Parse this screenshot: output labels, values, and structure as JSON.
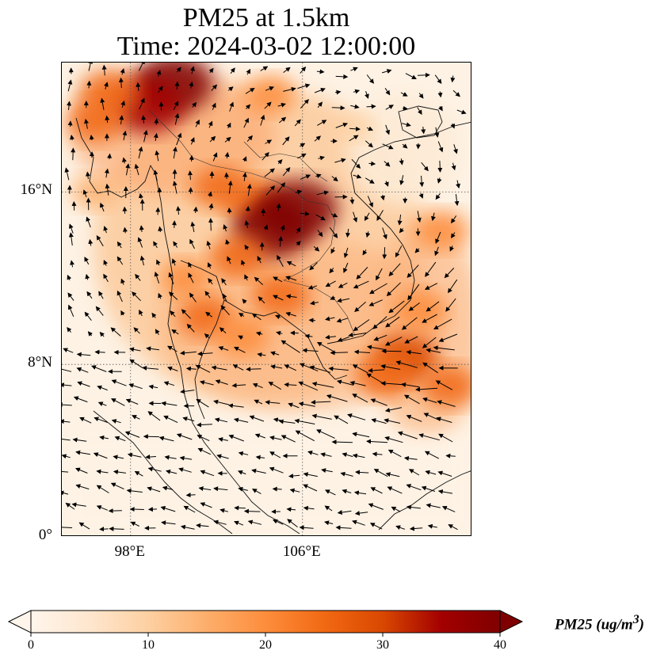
{
  "title_line1": "PM25 at 1.5km",
  "title_line2": "Time: 2024-03-02 12:00:00",
  "map": {
    "extent": {
      "lon_min": 94.8,
      "lon_max": 113.9,
      "lat_min": 0,
      "lat_max": 22
    },
    "lat_ticks": [
      {
        "value": 16,
        "label": "16°N"
      },
      {
        "value": 8,
        "label": "8°N"
      },
      {
        "value": 0,
        "label": "0°"
      }
    ],
    "lon_ticks": [
      {
        "value": 98,
        "label": "98°E"
      },
      {
        "value": 106,
        "label": "106°E"
      }
    ],
    "hotspots": [
      {
        "lon": 100.0,
        "lat": 21.0,
        "pm25": 40
      },
      {
        "lon": 98.8,
        "lat": 20.0,
        "pm25": 36
      },
      {
        "lon": 97.0,
        "lat": 20.6,
        "pm25": 27
      },
      {
        "lon": 96.4,
        "lat": 19.3,
        "pm25": 25
      },
      {
        "lon": 103.8,
        "lat": 15.6,
        "pm25": 27
      },
      {
        "lon": 104.6,
        "lat": 14.3,
        "pm25": 40
      },
      {
        "lon": 105.8,
        "lat": 15.2,
        "pm25": 40
      },
      {
        "lon": 102.2,
        "lat": 16.2,
        "pm25": 24
      },
      {
        "lon": 103.0,
        "lat": 13.0,
        "pm25": 24
      },
      {
        "lon": 105.0,
        "lat": 11.2,
        "pm25": 25
      },
      {
        "lon": 101.5,
        "lat": 10.2,
        "pm25": 23
      },
      {
        "lon": 103.2,
        "lat": 9.3,
        "pm25": 22
      },
      {
        "lon": 110.8,
        "lat": 8.3,
        "pm25": 30
      },
      {
        "lon": 109.8,
        "lat": 7.5,
        "pm25": 26
      },
      {
        "lon": 112.5,
        "lat": 14.2,
        "pm25": 22
      },
      {
        "lon": 111.5,
        "lat": 10.5,
        "pm25": 22
      },
      {
        "lon": 112.8,
        "lat": 7.0,
        "pm25": 24
      },
      {
        "lon": 104.5,
        "lat": 20.5,
        "pm25": 20
      },
      {
        "lon": 100.5,
        "lat": 12.0,
        "pm25": 19
      },
      {
        "lon": 96.3,
        "lat": 16.0,
        "pm25": 16
      },
      {
        "lon": 108.5,
        "lat": 19.0,
        "pm25": 10
      }
    ]
  },
  "colorbar": {
    "label": "PM25 (ug/m",
    "label_superscript": "3",
    "label_suffix": ")",
    "min": 0,
    "max": 40,
    "extend": "both",
    "ticks": [
      "0",
      "10",
      "20",
      "30",
      "40"
    ],
    "colors": [
      "#fff5eb",
      "#fee6ce",
      "#fdd0a2",
      "#fdae6b",
      "#fd8d3c",
      "#f16913",
      "#d94801",
      "#a30000",
      "#7f0000"
    ]
  }
}
